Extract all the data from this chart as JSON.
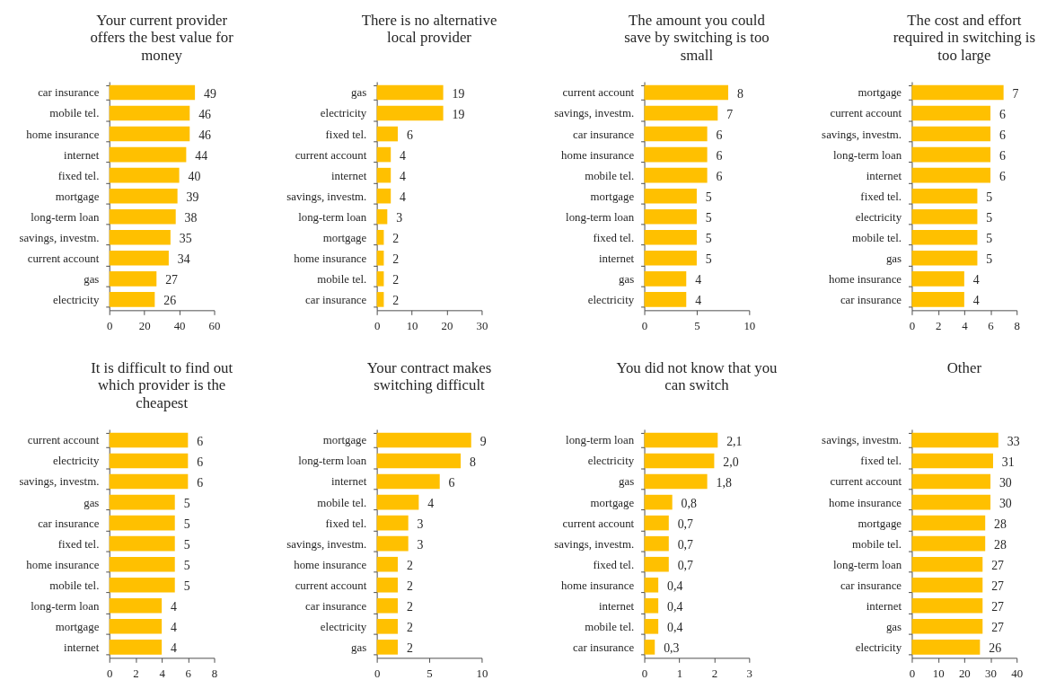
{
  "chart_data": [
    {
      "type": "bar",
      "orientation": "horizontal",
      "title": "Your current provider offers the best value for money",
      "categories": [
        "car insurance",
        "mobile tel.",
        "home insurance",
        "internet",
        "fixed tel.",
        "mortgage",
        "long-term loan",
        "savings, investm.",
        "current account",
        "gas",
        "electricity"
      ],
      "values": [
        49,
        46,
        46,
        44,
        40,
        39,
        38,
        35,
        34,
        27,
        26
      ],
      "color": "#ffc000",
      "xlim": [
        0,
        60
      ],
      "xticks": [
        0,
        20,
        40,
        60
      ],
      "data_labels": true
    },
    {
      "type": "bar",
      "orientation": "horizontal",
      "title": "There is no alternative local provider",
      "categories": [
        "gas",
        "electricity",
        "fixed tel.",
        "current account",
        "internet",
        "savings, investm.",
        "long-term loan",
        "mortgage",
        "home insurance",
        "mobile tel.",
        "car insurance"
      ],
      "values": [
        19,
        19,
        6,
        4,
        4,
        4,
        3,
        2,
        2,
        2,
        2
      ],
      "color": "#ffc000",
      "xlim": [
        0,
        30
      ],
      "xticks": [
        0,
        10,
        20,
        30
      ],
      "data_labels": true
    },
    {
      "type": "bar",
      "orientation": "horizontal",
      "title": "The amount you could save by switching is too small",
      "categories": [
        "current account",
        "savings, investm.",
        "car insurance",
        "home insurance",
        "mobile tel.",
        "mortgage",
        "long-term loan",
        "fixed tel.",
        "internet",
        "gas",
        "electricity"
      ],
      "values": [
        8,
        7,
        6,
        6,
        6,
        5,
        5,
        5,
        5,
        4,
        4
      ],
      "color": "#ffc000",
      "xlim": [
        0,
        10
      ],
      "xticks": [
        0,
        5,
        10
      ],
      "data_labels": true
    },
    {
      "type": "bar",
      "orientation": "horizontal",
      "title": "The cost and effort required in switching is too large",
      "categories": [
        "mortgage",
        "current account",
        "savings, investm.",
        "long-term loan",
        "internet",
        "fixed tel.",
        "electricity",
        "mobile tel.",
        "gas",
        "home insurance",
        "car insurance"
      ],
      "values": [
        7,
        6,
        6,
        6,
        6,
        5,
        5,
        5,
        5,
        4,
        4
      ],
      "color": "#ffc000",
      "xlim": [
        0,
        8
      ],
      "xticks": [
        0,
        2,
        4,
        6,
        8
      ],
      "data_labels": true
    },
    {
      "type": "bar",
      "orientation": "horizontal",
      "title": "It is difficult to find out which provider is the cheapest",
      "categories": [
        "current account",
        "electricity",
        "savings, investm.",
        "gas",
        "car insurance",
        "fixed tel.",
        "home insurance",
        "mobile tel.",
        "long-term loan",
        "mortgage",
        "internet"
      ],
      "values": [
        6,
        6,
        6,
        5,
        5,
        5,
        5,
        5,
        4,
        4,
        4
      ],
      "color": "#ffc000",
      "xlim": [
        0,
        8
      ],
      "xticks": [
        0,
        2,
        4,
        6,
        8
      ],
      "data_labels": true
    },
    {
      "type": "bar",
      "orientation": "horizontal",
      "title": "Your contract makes switching difficult",
      "categories": [
        "mortgage",
        "long-term loan",
        "internet",
        "mobile tel.",
        "fixed tel.",
        "savings, investm.",
        "home insurance",
        "current account",
        "car insurance",
        "electricity",
        "gas"
      ],
      "values": [
        9,
        8,
        6,
        4,
        3,
        3,
        2,
        2,
        2,
        2,
        2
      ],
      "color": "#ffc000",
      "xlim": [
        0,
        10
      ],
      "xticks": [
        0,
        5,
        10
      ],
      "data_labels": true
    },
    {
      "type": "bar",
      "orientation": "horizontal",
      "title": "You did not know that you can switch",
      "categories": [
        "long-term loan",
        "electricity",
        "gas",
        "mortgage",
        "current account",
        "savings, investm.",
        "fixed tel.",
        "home insurance",
        "internet",
        "mobile tel.",
        "car insurance"
      ],
      "values": [
        2.1,
        2.0,
        1.8,
        0.8,
        0.7,
        0.7,
        0.7,
        0.4,
        0.4,
        0.4,
        0.3
      ],
      "value_labels": [
        "2,1",
        "2,0",
        "1,8",
        "0,8",
        "0,7",
        "0,7",
        "0,7",
        "0,4",
        "0,4",
        "0,4",
        "0,3"
      ],
      "color": "#ffc000",
      "xlim": [
        0,
        3
      ],
      "xticks": [
        0,
        1,
        2,
        3
      ]
    },
    {
      "type": "bar",
      "orientation": "horizontal",
      "title": "Other",
      "categories": [
        "savings, investm.",
        "fixed tel.",
        "current account",
        "home insurance",
        "mortgage",
        "mobile tel.",
        "long-term loan",
        "car insurance",
        "internet",
        "gas",
        "electricity"
      ],
      "values": [
        33,
        31,
        30,
        30,
        28,
        28,
        27,
        27,
        27,
        27,
        26
      ],
      "color": "#ffc000",
      "xlim": [
        0,
        40
      ],
      "xticks": [
        0,
        10,
        20,
        30,
        40
      ],
      "data_labels": true
    }
  ]
}
